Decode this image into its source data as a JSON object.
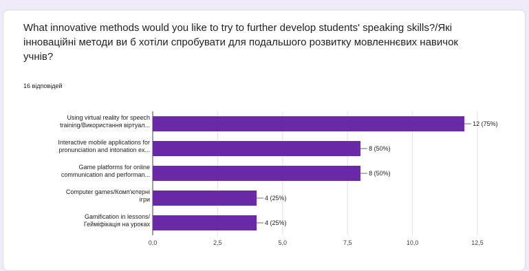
{
  "question": "What innovative methods would you like to try to further develop students' speaking skills?/Які інноваційні методи ви б хотіли спробувати для подальшого розвитку мовленнєвих навичок учнів?",
  "responses_label": "16 відповідей",
  "colors": {
    "bar": "#6a2aa8",
    "grid": "#e0e0e0",
    "axis": "#3c4043"
  },
  "chart_data": {
    "type": "bar",
    "orientation": "horizontal",
    "categories": [
      [
        "Using virtual reality for speech",
        "training/Використання віртуал..."
      ],
      [
        "Interactive mobile applications for",
        "pronunciation and intonation ex..."
      ],
      [
        "Game platforms for online",
        "communication and performan..."
      ],
      [
        "Computer games/Комп'ютерні",
        "ігри"
      ],
      [
        "Gamification in lessons/",
        "Гейміфікація на уроках"
      ]
    ],
    "values": [
      12,
      8,
      8,
      4,
      4
    ],
    "value_labels": [
      "12 (75%)",
      "8 (50%)",
      "8 (50%)",
      "4 (25%)",
      "4 (25%)"
    ],
    "xlim": [
      0,
      12.5
    ],
    "xticks": [
      0,
      2.5,
      5,
      7.5,
      10,
      12.5
    ],
    "xtick_labels": [
      "0,0",
      "2,5",
      "5,0",
      "7,5",
      "10,0",
      "12,5"
    ],
    "grid": true
  }
}
